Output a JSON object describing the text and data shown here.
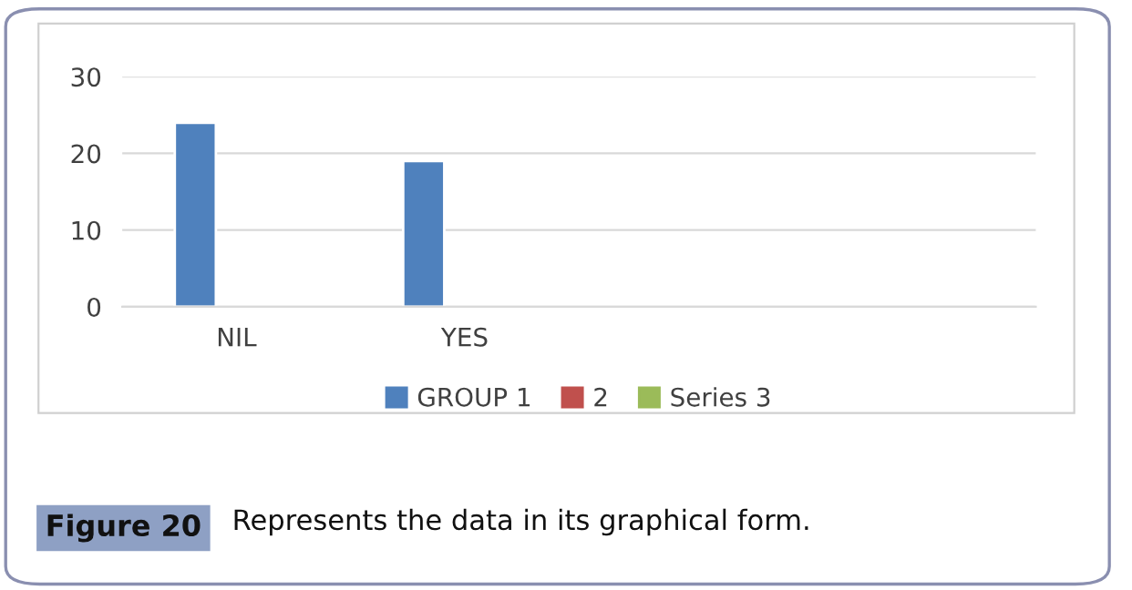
{
  "chart_data": {
    "type": "bar",
    "categories": [
      "NIL",
      "YES",
      null,
      null
    ],
    "series": [
      {
        "name": "GROUP 1",
        "color": "#4f81bd",
        "values": [
          24,
          19,
          null,
          null
        ]
      },
      {
        "name": "2",
        "color": "#c0504d",
        "values": [
          null,
          null,
          null,
          null
        ]
      },
      {
        "name": "Series 3",
        "color": "#9bbb59",
        "values": [
          null,
          null,
          null,
          null
        ]
      }
    ],
    "ylim": [
      0,
      30
    ],
    "yticks": [
      0,
      10,
      20,
      30
    ],
    "grid": "y",
    "legend": "bottom",
    "annotations": [
      "Figure 20",
      "Represents the data in its graphical form."
    ]
  }
}
